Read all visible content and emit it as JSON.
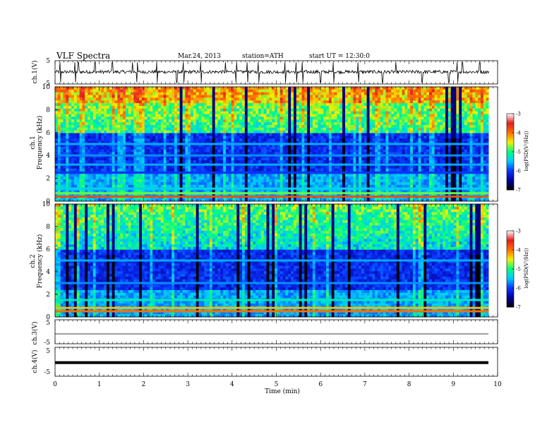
{
  "header": {
    "title": "VLF  Spectra",
    "date": "Mar.24, 2013",
    "station": "station=ATH",
    "start_time": "start  UT  =    12:30:0"
  },
  "chart_data": [
    {
      "type": "line",
      "panel": "ch1",
      "ylabel": "ch.1(V)",
      "ylim": [
        -5,
        5
      ],
      "y_ticks": [
        "5",
        "-5"
      ],
      "xlim": [
        0,
        10
      ],
      "baseline_level": 0.2,
      "spikes_min": [
        0.12,
        0.45,
        0.52,
        0.9,
        1.3,
        1.75,
        1.85,
        2.3,
        2.75,
        2.9,
        3.3,
        3.85,
        4.1,
        4.35,
        4.6,
        5.2,
        5.45,
        5.6,
        6.0,
        6.3,
        6.85,
        7.4,
        7.7,
        8.3,
        8.9,
        9.1,
        9.2,
        9.6
      ]
    },
    {
      "type": "heatmap",
      "panel": "ch1",
      "ylabel": "ch.1",
      "ylabel2": "Frequency  (kHz)",
      "y_ticks": [
        "0",
        "2",
        "4",
        "6",
        "8",
        "10"
      ],
      "ylim": [
        0,
        10
      ],
      "xlim": [
        0,
        9.8
      ],
      "colorbar_label": "log(PSD(V²/Hz))",
      "colorbar_ticks": [
        "-3",
        "-4",
        "-5",
        "-6",
        "-7"
      ],
      "colorbar_range": [
        -7,
        -3
      ],
      "colormap": [
        "#000000",
        "#0000a0",
        "#0a36ff",
        "#00c8ff",
        "#00ff80",
        "#f0f000",
        "#ff7000",
        "#e02020",
        "#ffffff"
      ],
      "bands_khz": [
        {
          "freq": 0.4,
          "level": -3.8
        },
        {
          "freq": 0.7,
          "level": -4.8
        },
        {
          "freq": 1.1,
          "level": -5.4
        },
        {
          "freq": 2.5,
          "level": -6.0
        },
        {
          "freq": 3.2,
          "level": -5.6
        },
        {
          "freq": 4.0,
          "level": -5.7
        },
        {
          "freq": 5.0,
          "level": -5.6
        }
      ]
    },
    {
      "type": "heatmap",
      "panel": "ch2",
      "ylabel": "ch.2",
      "ylabel2": "Frequency  (kHz)",
      "y_ticks": [
        "0",
        "2",
        "4",
        "6",
        "8",
        "10"
      ],
      "ylim": [
        0,
        10
      ],
      "xlim": [
        0,
        9.8
      ],
      "colorbar_label": "log(PSD(V²/Hz))",
      "colorbar_ticks": [
        "-3",
        "-4",
        "-5",
        "-6",
        "-7"
      ],
      "colorbar_range": [
        -7,
        -3
      ],
      "bands_khz": [
        {
          "freq": 0.5,
          "level": -4.0
        },
        {
          "freq": 0.8,
          "level": -4.3
        },
        {
          "freq": 1.5,
          "level": -5.2
        },
        {
          "freq": 3.0,
          "level": -5.7
        },
        {
          "freq": 5.0,
          "level": -5.6
        }
      ]
    },
    {
      "type": "line",
      "panel": "ch3",
      "ylabel": "ch.3(V)",
      "y_ticks": [
        "5",
        "-5"
      ],
      "ylim": [
        -5,
        5
      ],
      "level": 0.0
    },
    {
      "type": "line",
      "panel": "ch4",
      "ylabel": "ch.4(V)",
      "y_ticks": [
        "5",
        "-5"
      ],
      "ylim": [
        -5,
        5
      ],
      "level": -0.3
    }
  ],
  "x_axis": {
    "label": "Time  (min)",
    "ticks": [
      "0",
      "1",
      "2",
      "3",
      "4",
      "5",
      "6",
      "7",
      "8",
      "9",
      "10"
    ],
    "range": [
      0,
      10
    ]
  }
}
